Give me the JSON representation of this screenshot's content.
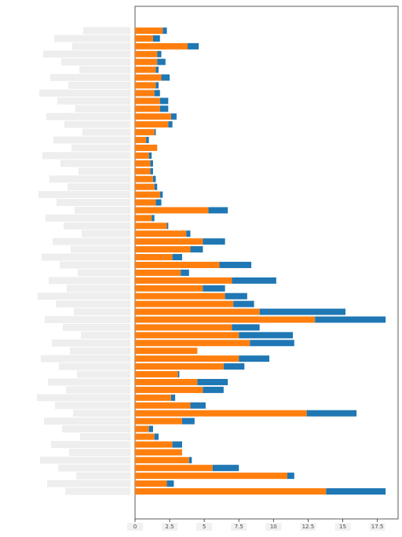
{
  "chart_data": {
    "type": "stacked-barh",
    "categories": [
      null,
      null,
      null,
      null,
      null,
      null,
      null,
      null,
      null,
      null,
      null,
      null,
      null,
      null,
      null,
      null,
      null,
      null,
      null,
      null,
      null,
      null,
      null,
      null,
      null,
      null,
      null,
      null,
      null,
      null,
      null,
      null,
      null,
      null,
      null,
      null,
      null,
      null,
      null,
      null,
      null,
      null,
      null,
      null,
      null,
      null,
      null,
      null,
      null,
      null,
      null,
      null,
      null,
      null,
      null,
      null,
      null,
      null,
      null,
      null
    ],
    "series": [
      {
        "color": "#ff7f0e",
        "values": [
          2.0,
          1.3,
          3.8,
          1.6,
          1.6,
          1.5,
          1.9,
          1.5,
          1.4,
          1.8,
          1.8,
          2.6,
          2.4,
          1.4,
          0.8,
          1.6,
          1.0,
          1.1,
          1.1,
          1.3,
          1.4,
          1.8,
          1.5,
          5.3,
          1.2,
          2.3,
          3.7,
          4.9,
          4.0,
          2.7,
          6.1,
          3.3,
          7.0,
          4.9,
          6.5,
          7.1,
          9.0,
          13.0,
          7.0,
          7.5,
          8.3,
          4.5,
          7.5,
          6.4,
          3.1,
          4.5,
          4.9,
          2.6,
          4.0,
          12.4,
          3.4,
          1.0,
          1.4,
          2.7,
          3.4,
          3.9,
          5.6,
          11.0,
          2.3,
          13.8
        ]
      },
      {
        "color": "#1f77b4",
        "values": [
          0.3,
          0.5,
          0.8,
          0.3,
          0.6,
          0.2,
          0.6,
          0.2,
          0.4,
          0.6,
          0.6,
          0.4,
          0.3,
          0.1,
          0.2,
          0,
          0.2,
          0.2,
          0.2,
          0.2,
          0.2,
          0.2,
          0.4,
          1.4,
          0.2,
          0.1,
          0.3,
          1.6,
          0.9,
          0.7,
          2.3,
          0.6,
          3.2,
          1.6,
          1.6,
          1.5,
          6.2,
          5.1,
          2.0,
          3.9,
          3.2,
          0,
          2.2,
          1.5,
          0.1,
          2.2,
          1.5,
          0.3,
          1.1,
          3.6,
          0.9,
          0.3,
          0.3,
          0.7,
          0,
          0.2,
          1.9,
          0.5,
          0.5,
          4.3
        ]
      }
    ],
    "xlim": [
      0,
      19
    ],
    "xticks": [
      0,
      2.5,
      5,
      7.5,
      10,
      12.5,
      15,
      17.5
    ]
  }
}
